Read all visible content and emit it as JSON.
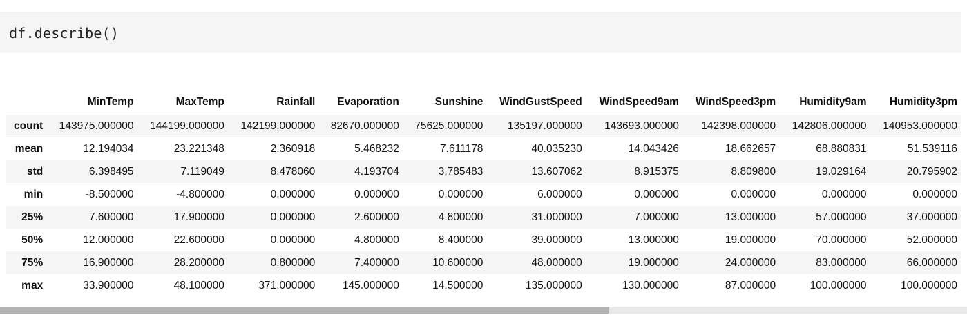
{
  "code_cell": {
    "source": "df.describe()"
  },
  "dataframe": {
    "columns": [
      "",
      "MinTemp",
      "MaxTemp",
      "Rainfall",
      "Evaporation",
      "Sunshine",
      "WindGustSpeed",
      "WindSpeed9am",
      "WindSpeed3pm",
      "Humidity9am",
      "Humidity3pm"
    ],
    "rows": [
      {
        "label": "count",
        "values": [
          "143975.000000",
          "144199.000000",
          "142199.000000",
          "82670.000000",
          "75625.000000",
          "135197.000000",
          "143693.000000",
          "142398.000000",
          "142806.000000",
          "140953.000000"
        ]
      },
      {
        "label": "mean",
        "values": [
          "12.194034",
          "23.221348",
          "2.360918",
          "5.468232",
          "7.611178",
          "40.035230",
          "14.043426",
          "18.662657",
          "68.880831",
          "51.539116"
        ]
      },
      {
        "label": "std",
        "values": [
          "6.398495",
          "7.119049",
          "8.478060",
          "4.193704",
          "3.785483",
          "13.607062",
          "8.915375",
          "8.809800",
          "19.029164",
          "20.795902"
        ]
      },
      {
        "label": "min",
        "values": [
          "-8.500000",
          "-4.800000",
          "0.000000",
          "0.000000",
          "0.000000",
          "6.000000",
          "0.000000",
          "0.000000",
          "0.000000",
          "0.000000"
        ]
      },
      {
        "label": "25%",
        "values": [
          "7.600000",
          "17.900000",
          "0.000000",
          "2.600000",
          "4.800000",
          "31.000000",
          "7.000000",
          "13.000000",
          "57.000000",
          "37.000000"
        ]
      },
      {
        "label": "50%",
        "values": [
          "12.000000",
          "22.600000",
          "0.000000",
          "4.800000",
          "8.400000",
          "39.000000",
          "13.000000",
          "19.000000",
          "70.000000",
          "52.000000"
        ]
      },
      {
        "label": "75%",
        "values": [
          "16.900000",
          "28.200000",
          "0.800000",
          "7.400000",
          "10.600000",
          "48.000000",
          "19.000000",
          "24.000000",
          "83.000000",
          "66.000000"
        ]
      },
      {
        "label": "max",
        "values": [
          "33.900000",
          "48.100000",
          "371.000000",
          "145.000000",
          "14.500000",
          "135.000000",
          "130.000000",
          "87.000000",
          "100.000000",
          "100.000000"
        ]
      }
    ]
  },
  "scrollbar": {
    "position_fraction": 0.63
  }
}
